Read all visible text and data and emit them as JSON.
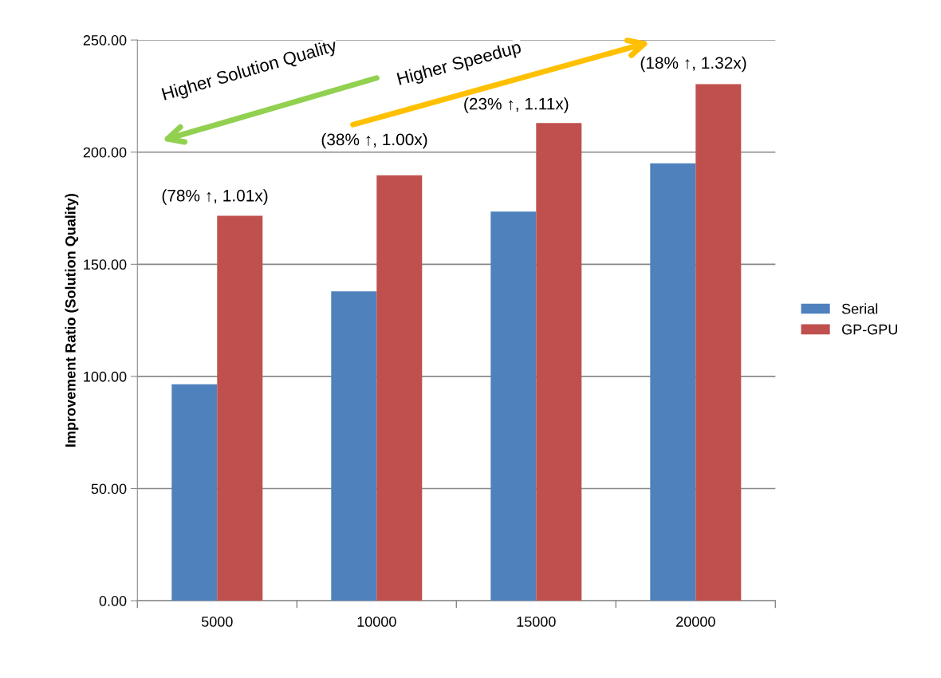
{
  "chart_data": {
    "type": "bar",
    "ylabel": "Improvement Ratio (Solution Quality)",
    "categories": [
      "5000",
      "10000",
      "15000",
      "20000"
    ],
    "series": [
      {
        "name": "Serial",
        "color": "#4f81bd",
        "values": [
          96.5,
          137.9,
          173.5,
          195.0
        ]
      },
      {
        "name": "GP-GPU",
        "color": "#c0504d",
        "values": [
          171.6,
          189.7,
          213.0,
          230.3
        ]
      }
    ],
    "ylim": [
      0,
      250
    ],
    "yticks": [
      {
        "value": 0,
        "label": "0.00"
      },
      {
        "value": 50,
        "label": "50.00"
      },
      {
        "value": 100,
        "label": "100.00"
      },
      {
        "value": 150,
        "label": "150.00"
      },
      {
        "value": 200,
        "label": "200.00"
      },
      {
        "value": 250,
        "label": "250.00"
      }
    ],
    "grid": "y",
    "legend": "right",
    "annotations": [
      {
        "text": "(78% ↑, 1.01x)",
        "x": "5000",
        "y": 171.6
      },
      {
        "text": "(38% ↑, 1.00x)",
        "x": "10000",
        "y": 189.7
      },
      {
        "text": "(23% ↑, 1.11x)",
        "x": "15000",
        "y": 213.0
      },
      {
        "text": "(18% ↑, 1.32x)",
        "x": "20000",
        "y": 230.3
      },
      "Higher Solution Quality",
      "Higher Speedup"
    ]
  }
}
